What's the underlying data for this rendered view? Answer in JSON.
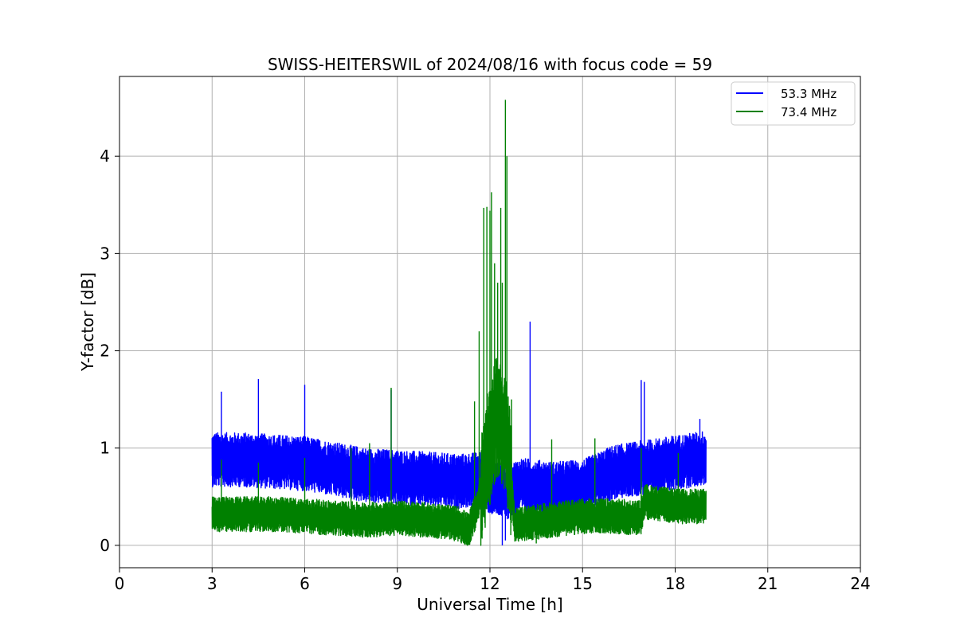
{
  "chart_data": {
    "type": "line",
    "title": "SWISS-HEITERSWIL of 2024/08/16 with focus code = 59",
    "xlabel": "Universal Time [h]",
    "ylabel": "Y-factor [dB]",
    "xlim": [
      0,
      24
    ],
    "ylim": [
      -0.23,
      4.82
    ],
    "xticks": [
      0,
      3,
      6,
      9,
      12,
      15,
      18,
      21,
      24
    ],
    "yticks": [
      0,
      1,
      2,
      3,
      4
    ],
    "grid": true,
    "legend_position": "top-right",
    "x_range_of_data": [
      3.0,
      19.0
    ],
    "series": [
      {
        "name": "53.3 MHz",
        "color": "#0000ff",
        "baseline": [
          [
            3,
            0.88
          ],
          [
            4,
            0.88
          ],
          [
            5,
            0.86
          ],
          [
            6,
            0.84
          ],
          [
            7,
            0.78
          ],
          [
            8,
            0.72
          ],
          [
            9,
            0.7
          ],
          [
            10,
            0.68
          ],
          [
            11,
            0.66
          ],
          [
            11.7,
            0.68
          ],
          [
            12.0,
            0.6
          ],
          [
            12.6,
            0.55
          ],
          [
            13,
            0.62
          ],
          [
            14,
            0.58
          ],
          [
            15,
            0.6
          ],
          [
            16,
            0.75
          ],
          [
            17,
            0.8
          ],
          [
            18,
            0.85
          ],
          [
            19,
            0.9
          ]
        ],
        "band_halfwidth": 0.28,
        "spikes": [
          [
            3.3,
            1.58
          ],
          [
            4.5,
            1.71
          ],
          [
            6.0,
            1.65
          ],
          [
            8.8,
            1.6
          ],
          [
            12.0,
            1.2
          ],
          [
            13.3,
            2.3
          ],
          [
            16.9,
            1.7
          ],
          [
            17.0,
            1.68
          ],
          [
            18.8,
            1.3
          ]
        ],
        "dips": [
          [
            12.4,
            0.0
          ],
          [
            12.5,
            0.05
          ],
          [
            12.8,
            0.15
          ]
        ]
      },
      {
        "name": "73.4 MHz",
        "color": "#008000",
        "baseline": [
          [
            3,
            0.32
          ],
          [
            4,
            0.32
          ],
          [
            5,
            0.32
          ],
          [
            6,
            0.3
          ],
          [
            7,
            0.28
          ],
          [
            8,
            0.26
          ],
          [
            9,
            0.28
          ],
          [
            10,
            0.26
          ],
          [
            11,
            0.22
          ],
          [
            11.3,
            0.15
          ],
          [
            11.6,
            0.4
          ],
          [
            11.9,
            0.9
          ],
          [
            12.2,
            1.3
          ],
          [
            12.5,
            1.2
          ],
          [
            12.7,
            0.6
          ],
          [
            12.8,
            0.2
          ],
          [
            13,
            0.22
          ],
          [
            14,
            0.26
          ],
          [
            15,
            0.3
          ],
          [
            16,
            0.3
          ],
          [
            16.9,
            0.28
          ],
          [
            17.0,
            0.45
          ],
          [
            18,
            0.4
          ],
          [
            19,
            0.4
          ]
        ],
        "band_halfwidth": 0.18,
        "spikes": [
          [
            3.3,
            0.88
          ],
          [
            4.5,
            0.85
          ],
          [
            6.0,
            0.9
          ],
          [
            7.5,
            1.0
          ],
          [
            8.1,
            1.05
          ],
          [
            8.8,
            1.62
          ],
          [
            11.5,
            1.48
          ],
          [
            11.65,
            2.2
          ],
          [
            11.8,
            3.47
          ],
          [
            11.9,
            3.48
          ],
          [
            12.0,
            3.44
          ],
          [
            12.05,
            3.63
          ],
          [
            12.15,
            2.9
          ],
          [
            12.25,
            2.7
          ],
          [
            12.35,
            3.47
          ],
          [
            12.4,
            2.7
          ],
          [
            12.5,
            4.58
          ],
          [
            12.55,
            4.0
          ],
          [
            12.7,
            1.5
          ],
          [
            14.0,
            1.09
          ],
          [
            15.4,
            1.1
          ],
          [
            16.9,
            1.0
          ],
          [
            18.1,
            0.95
          ]
        ],
        "dips": [
          [
            11.3,
            0.01
          ],
          [
            13.5,
            0.02
          ]
        ]
      }
    ]
  }
}
